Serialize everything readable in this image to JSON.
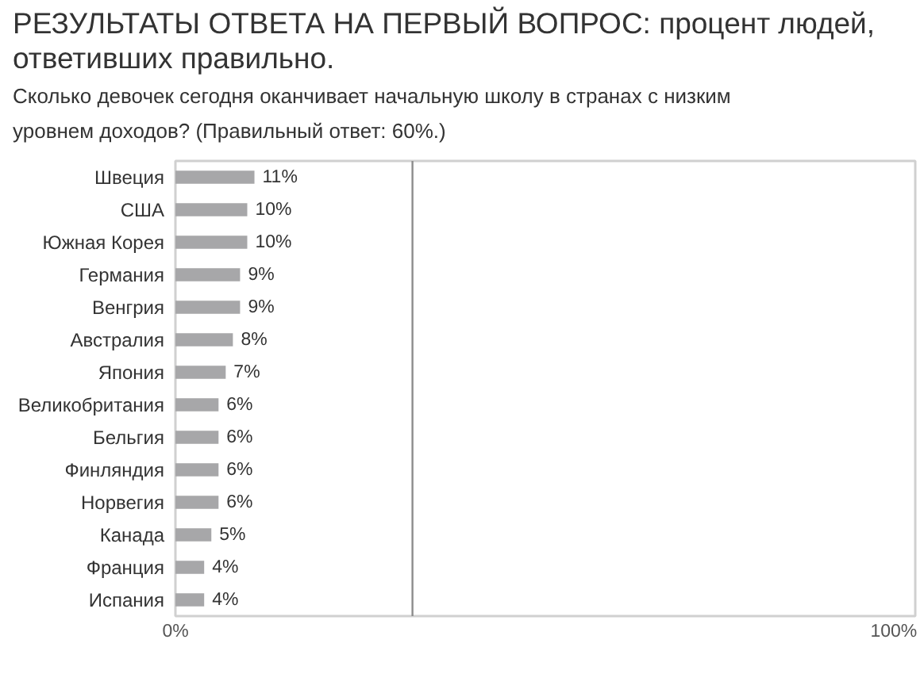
{
  "chart_data": {
    "type": "bar",
    "orientation": "horizontal",
    "title": "РЕЗУЛЬТАТЫ ОТВЕТА НА ПЕРВЫЙ ВОПРОС: процент людей, ответивших правильно.",
    "subtitle": "Сколько девочек сегодня оканчивает начальную школу в странах с низким уровнем доходов? (Правильный ответ: 60%.)",
    "categories": [
      "Швеция",
      "США",
      "Южная Корея",
      "Германия",
      "Венгрия",
      "Австралия",
      "Япония",
      "Великобритания",
      "Бельгия",
      "Финляндия",
      "Норвегия",
      "Канада",
      "Франция",
      "Испания"
    ],
    "values": [
      11,
      10,
      10,
      9,
      9,
      8,
      7,
      6,
      6,
      6,
      6,
      5,
      4,
      4
    ],
    "color": "#a7a7a9",
    "value_labels": [
      "11%",
      "10%",
      "10%",
      "9%",
      "9%",
      "8%",
      "7%",
      "6%",
      "6%",
      "6%",
      "6%",
      "5%",
      "4%",
      "4%"
    ],
    "xlim": [
      0,
      103
    ],
    "xticks": [
      {
        "value": 0,
        "label": "0%"
      },
      {
        "value": 100,
        "label": "100%"
      }
    ],
    "ref_lines": [
      {
        "axis": "x",
        "value": 33,
        "color": "#8c8c8c"
      }
    ]
  }
}
